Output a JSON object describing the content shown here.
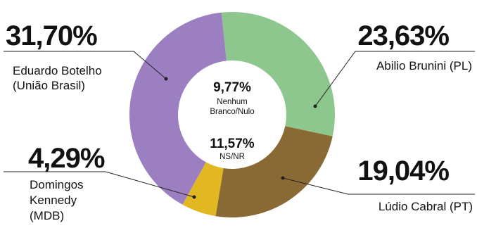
{
  "chart_data": {
    "type": "pie",
    "variant": "donut",
    "series": [
      {
        "name": "",
        "slices": [
          {
            "key": "abilio",
            "percent": 23.63,
            "value_label": "23,63%",
            "name_lines": [
              "Abilio Brunini (PL)"
            ],
            "color": "#8dc78d"
          },
          {
            "key": "ludio",
            "percent": 19.04,
            "value_label": "19,04%",
            "name_lines": [
              "Lúdio Cabral (PT)"
            ],
            "color": "#8a6a34"
          },
          {
            "key": "domingos",
            "percent": 4.29,
            "value_label": "4,29%",
            "name_lines": [
              "Domingos",
              "Kennedy",
              "(MDB)"
            ],
            "color": "#e1b821"
          },
          {
            "key": "eduardo",
            "percent": 31.7,
            "value_label": "31,70%",
            "name_lines": [
              "Eduardo Botelho",
              "(União Brasil)"
            ],
            "color": "#9b7fc1"
          }
        ]
      }
    ],
    "center": [
      {
        "percent": 9.77,
        "value_label": "9,77%",
        "lines": [
          "Nenhum",
          "Branco/Nulo"
        ]
      },
      {
        "percent": 11.57,
        "value_label": "11,57%",
        "lines": [
          "NS/NR"
        ]
      }
    ]
  }
}
